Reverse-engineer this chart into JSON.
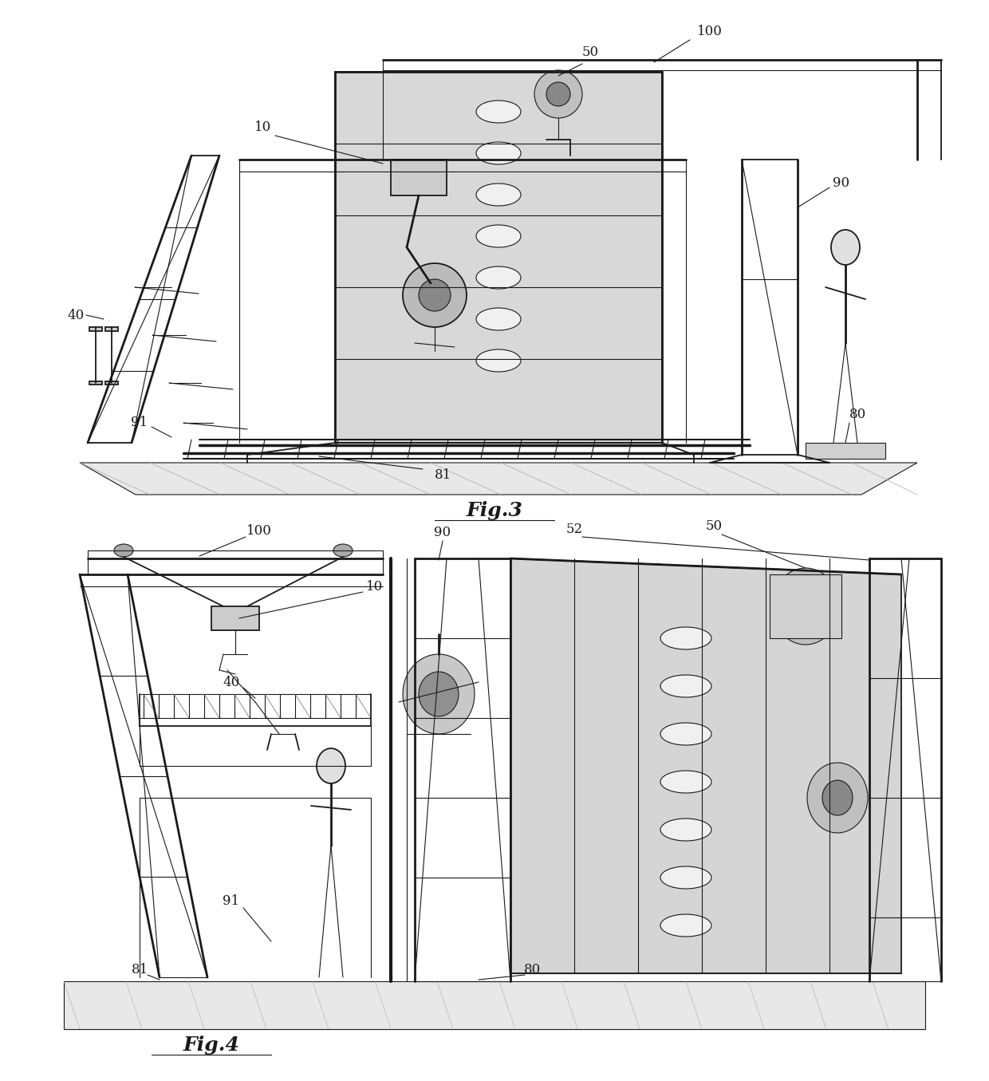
{
  "background_color": "#ffffff",
  "fig_width": 12.4,
  "fig_height": 13.55,
  "dpi": 100,
  "fig3_label": "Fig.3",
  "fig4_label": "Fig.4",
  "line_color": "#1a1a1a",
  "label_fontsize": 12,
  "caption_fontsize": 18
}
